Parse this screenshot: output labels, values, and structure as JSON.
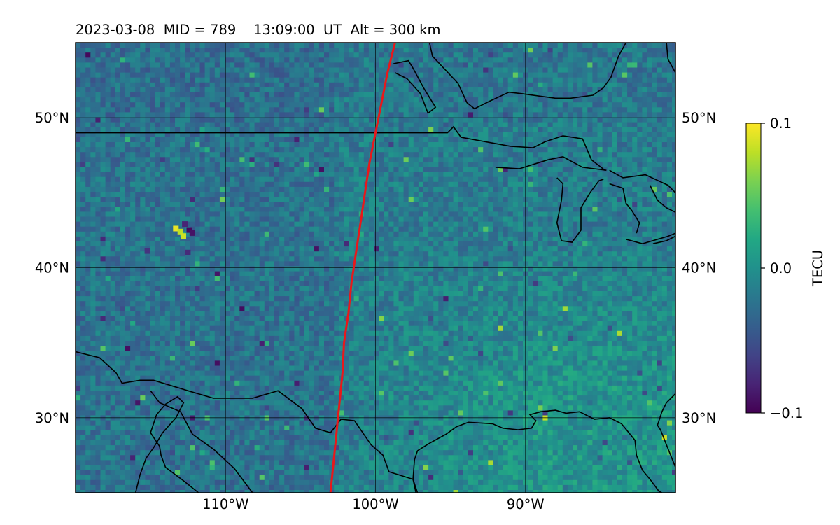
{
  "header": {
    "title": "2023-03-08  MID = 789    13:09:00  UT  Alt = 300 km"
  },
  "chart_data": {
    "type": "heatmap",
    "title": "2023-03-08  MID = 789    13:09:00  UT  Alt = 300 km",
    "xlim": [
      -120,
      -80
    ],
    "ylim": [
      25,
      55
    ],
    "x_ticks": [
      {
        "value": -110,
        "label": "110°W"
      },
      {
        "value": -100,
        "label": "100°W"
      },
      {
        "value": -90,
        "label": "90°W"
      }
    ],
    "y_ticks": [
      {
        "value": 50,
        "label": "50°N"
      },
      {
        "value": 40,
        "label": "40°N"
      },
      {
        "value": 30,
        "label": "30°N"
      }
    ],
    "grid": true,
    "colormap": "viridis",
    "colorbar": {
      "label": "TECU",
      "min": -0.1,
      "max": 0.1,
      "ticks": [
        {
          "value": 0.1,
          "label": "0.1"
        },
        {
          "value": 0.0,
          "label": "0.0"
        },
        {
          "value": -0.1,
          "label": "−0.1"
        }
      ]
    },
    "overlay_line": {
      "color": "#e8181b",
      "points": [
        [
          -98.7,
          55
        ],
        [
          -99.2,
          53
        ],
        [
          -99.8,
          50
        ],
        [
          -100.0,
          49
        ],
        [
          -100.4,
          47
        ],
        [
          -100.7,
          45
        ],
        [
          -101.0,
          43
        ],
        [
          -101.3,
          41
        ],
        [
          -101.6,
          39
        ],
        [
          -101.8,
          37
        ],
        [
          -102.1,
          35
        ],
        [
          -102.2,
          33
        ],
        [
          -102.4,
          31
        ],
        [
          -102.5,
          30
        ],
        [
          -102.7,
          28
        ],
        [
          -102.8,
          27
        ],
        [
          -103.0,
          25
        ]
      ]
    },
    "coastlines": [
      [
        [
          -120,
          49
        ],
        [
          -95.2,
          49
        ],
        [
          -94.8,
          49.4
        ],
        [
          -94.3,
          48.7
        ],
        [
          -91,
          48.1
        ],
        [
          -89.5,
          48.0
        ],
        [
          -88.7,
          48.4
        ],
        [
          -87.5,
          48.8
        ],
        [
          -86.2,
          48.6
        ],
        [
          -85.6,
          47.2
        ],
        [
          -84.7,
          46.5
        ]
      ],
      [
        [
          -92.0,
          46.7
        ],
        [
          -90.4,
          46.6
        ],
        [
          -88.5,
          47.2
        ],
        [
          -87.5,
          47.4
        ],
        [
          -86.2,
          46.7
        ],
        [
          -84.6,
          46.5
        ]
      ],
      [
        [
          -84.4,
          46.5
        ],
        [
          -83.5,
          46.0
        ],
        [
          -82.0,
          46.2
        ],
        [
          -80.5,
          45.5
        ],
        [
          -80,
          45.0
        ]
      ],
      [
        [
          -87.9,
          46.0
        ],
        [
          -87.5,
          45.6
        ],
        [
          -87.6,
          44.5
        ],
        [
          -87.9,
          43.0
        ],
        [
          -87.6,
          41.8
        ],
        [
          -86.9,
          41.7
        ],
        [
          -86.3,
          42.5
        ],
        [
          -86.3,
          44.0
        ],
        [
          -85.7,
          45.0
        ],
        [
          -85.1,
          45.8
        ],
        [
          -84.8,
          45.9
        ]
      ],
      [
        [
          -84.4,
          45.6
        ],
        [
          -83.5,
          45.3
        ],
        [
          -83.3,
          44.3
        ],
        [
          -82.9,
          43.8
        ],
        [
          -82.4,
          43.0
        ],
        [
          -82.6,
          42.3
        ]
      ],
      [
        [
          -81.7,
          45.5
        ],
        [
          -81.2,
          44.5
        ],
        [
          -80.6,
          44.0
        ],
        [
          -80,
          43.7
        ]
      ],
      [
        [
          -83.3,
          41.9
        ],
        [
          -82.2,
          41.6
        ],
        [
          -80.5,
          42.1
        ],
        [
          -80,
          42.3
        ]
      ],
      [
        [
          -81.5,
          41.6
        ],
        [
          -80.6,
          41.8
        ],
        [
          -80,
          42.1
        ]
      ],
      [
        [
          -98.8,
          53.6
        ],
        [
          -97.8,
          53.8
        ],
        [
          -97.5,
          53.3
        ],
        [
          -96.8,
          52.0
        ],
        [
          -96.0,
          50.7
        ],
        [
          -96.5,
          50.3
        ],
        [
          -97.0,
          51.6
        ],
        [
          -97.9,
          52.6
        ],
        [
          -98.7,
          53.0
        ]
      ],
      [
        [
          -96.4,
          55
        ],
        [
          -96.2,
          54.1
        ],
        [
          -94.5,
          52.3
        ],
        [
          -93.9,
          51.0
        ],
        [
          -93.4,
          50.6
        ],
        [
          -92.4,
          51.1
        ],
        [
          -91.1,
          51.7
        ],
        [
          -90.2,
          51.6
        ],
        [
          -88.0,
          51.3
        ],
        [
          -87,
          51.3
        ],
        [
          -85.5,
          51.5
        ],
        [
          -84.8,
          52.0
        ],
        [
          -84.3,
          52.7
        ],
        [
          -83.8,
          54.1
        ],
        [
          -83.3,
          55
        ]
      ],
      [
        [
          -80.6,
          55
        ],
        [
          -80.5,
          53.9
        ],
        [
          -80,
          53.0
        ]
      ],
      [
        [
          -120,
          34.4
        ],
        [
          -118.4,
          34.0
        ],
        [
          -117.3,
          33.0
        ],
        [
          -116.9,
          32.3
        ],
        [
          -115.7,
          32.5
        ],
        [
          -114.8,
          32.5
        ],
        [
          -112.5,
          31.8
        ],
        [
          -110.8,
          31.3
        ],
        [
          -108.2,
          31.3
        ],
        [
          -106.5,
          31.8
        ],
        [
          -104.9,
          30.6
        ],
        [
          -104.0,
          29.3
        ],
        [
          -103.0,
          29.0
        ],
        [
          -102.3,
          29.9
        ],
        [
          -101.4,
          29.8
        ],
        [
          -100.3,
          28.2
        ],
        [
          -99.5,
          27.5
        ],
        [
          -99.1,
          26.4
        ],
        [
          -97.5,
          25.9
        ],
        [
          -97.3,
          25
        ]
      ],
      [
        [
          -115.0,
          31.8
        ],
        [
          -114.4,
          31.0
        ],
        [
          -113.0,
          30.4
        ],
        [
          -112.2,
          28.9
        ],
        [
          -110.8,
          27.9
        ],
        [
          -109.4,
          26.6
        ],
        [
          -108.2,
          25
        ]
      ],
      [
        [
          -116.0,
          25.0
        ],
        [
          -115.7,
          26.2
        ],
        [
          -115.3,
          27.3
        ],
        [
          -114.8,
          28.0
        ],
        [
          -114.2,
          29.0
        ],
        [
          -113.3,
          30.0
        ],
        [
          -112.8,
          31.0
        ],
        [
          -113.2,
          31.4
        ],
        [
          -114.0,
          30.9
        ],
        [
          -114.6,
          30.2
        ],
        [
          -115.0,
          29.0
        ],
        [
          -114.4,
          28.1
        ],
        [
          -114.3,
          27.5
        ],
        [
          -114.0,
          26.7
        ],
        [
          -112.8,
          25.8
        ],
        [
          -111.8,
          25.0
        ]
      ],
      [
        [
          -97.2,
          25.0
        ],
        [
          -97.5,
          25.9
        ],
        [
          -97.4,
          27.2
        ],
        [
          -97.2,
          27.8
        ],
        [
          -96.4,
          28.3
        ],
        [
          -95.3,
          28.9
        ],
        [
          -94.6,
          29.4
        ],
        [
          -93.8,
          29.7
        ],
        [
          -92.2,
          29.6
        ],
        [
          -91.5,
          29.3
        ],
        [
          -90.5,
          29.2
        ],
        [
          -89.6,
          29.3
        ],
        [
          -89.3,
          29.8
        ],
        [
          -89.7,
          30.2
        ],
        [
          -89.0,
          30.4
        ],
        [
          -88.0,
          30.5
        ],
        [
          -87.3,
          30.3
        ],
        [
          -86.4,
          30.4
        ],
        [
          -85.4,
          29.9
        ],
        [
          -84.4,
          30.0
        ],
        [
          -83.6,
          29.6
        ],
        [
          -82.7,
          28.5
        ],
        [
          -82.6,
          27.5
        ],
        [
          -82.2,
          26.5
        ],
        [
          -81.7,
          25.9
        ],
        [
          -81.1,
          25.1
        ],
        [
          -80.9,
          25
        ]
      ],
      [
        [
          -80,
          31.6
        ],
        [
          -80.6,
          31.0
        ],
        [
          -80.9,
          30.4
        ],
        [
          -81.2,
          29.5
        ],
        [
          -81.0,
          29.2
        ],
        [
          -80.6,
          28.2
        ],
        [
          -80.2,
          27.2
        ],
        [
          -80,
          26.7
        ]
      ]
    ]
  }
}
